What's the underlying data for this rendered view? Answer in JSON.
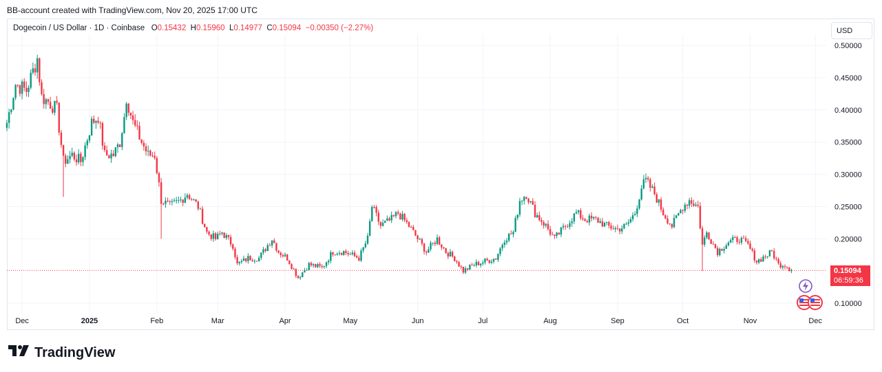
{
  "header": {
    "created_by": "BB-account created with TradingView.com, Nov 20, 2025 17:00 UTC"
  },
  "legend": {
    "symbol": "Dogecoin / US Dollar · 1D · Coinbase",
    "open_label": "O",
    "open": "0.15432",
    "high_label": "H",
    "high": "0.15960",
    "low_label": "L",
    "low": "0.14977",
    "close_label": "C",
    "close": "0.15094",
    "change": "−0.00350 (−2.27%)"
  },
  "currency_button": "USD",
  "last_price": {
    "price": "0.15094",
    "countdown": "06:59:36"
  },
  "brand": {
    "name": "TradingView"
  },
  "icons": [
    "flash-icon",
    "us-flag-icon"
  ],
  "colors": {
    "up": "#089981",
    "down": "#f23645",
    "grid": "#f0f3fa",
    "text": "#131722"
  },
  "chart_data": {
    "type": "candlestick",
    "x_axis_labels": [
      "Dec",
      "2025",
      "Feb",
      "Mar",
      "Apr",
      "May",
      "Jun",
      "Jul",
      "Aug",
      "Sep",
      "Oct",
      "Nov",
      "Dec"
    ],
    "y_axis_labels": [
      "0.50000",
      "0.45000",
      "0.40000",
      "0.35000",
      "0.30000",
      "0.25000",
      "0.20000",
      "0.10000"
    ],
    "ylim": [
      0.085,
      0.525
    ],
    "x_range": [
      "2024-11-24",
      "2025-12-06"
    ],
    "grid": true,
    "last_close": 0.15094,
    "close_path": [
      [
        "2024-11-24",
        0.38
      ],
      [
        "2024-11-28",
        0.44
      ],
      [
        "2024-12-03",
        0.43
      ],
      [
        "2024-12-06",
        0.46
      ],
      [
        "2024-12-08",
        0.48
      ],
      [
        "2024-12-10",
        0.42
      ],
      [
        "2024-12-14",
        0.41
      ],
      [
        "2024-12-17",
        0.4
      ],
      [
        "2024-12-20",
        0.32
      ],
      [
        "2024-12-24",
        0.33
      ],
      [
        "2024-12-28",
        0.32
      ],
      [
        "2025-01-02",
        0.38
      ],
      [
        "2025-01-05",
        0.39
      ],
      [
        "2025-01-08",
        0.33
      ],
      [
        "2025-01-12",
        0.33
      ],
      [
        "2025-01-15",
        0.35
      ],
      [
        "2025-01-17",
        0.39
      ],
      [
        "2025-01-18",
        0.42
      ],
      [
        "2025-01-21",
        0.38
      ],
      [
        "2025-01-25",
        0.35
      ],
      [
        "2025-01-28",
        0.33
      ],
      [
        "2025-01-31",
        0.33
      ],
      [
        "2025-02-03",
        0.26
      ],
      [
        "2025-02-07",
        0.25
      ],
      [
        "2025-02-12",
        0.26
      ],
      [
        "2025-02-15",
        0.27
      ],
      [
        "2025-02-20",
        0.25
      ],
      [
        "2025-02-24",
        0.21
      ],
      [
        "2025-02-28",
        0.2
      ],
      [
        "2025-03-03",
        0.21
      ],
      [
        "2025-03-08",
        0.19
      ],
      [
        "2025-03-10",
        0.16
      ],
      [
        "2025-03-15",
        0.17
      ],
      [
        "2025-03-20",
        0.17
      ],
      [
        "2025-03-26",
        0.2
      ],
      [
        "2025-03-29",
        0.18
      ],
      [
        "2025-04-02",
        0.17
      ],
      [
        "2025-04-07",
        0.14
      ],
      [
        "2025-04-12",
        0.16
      ],
      [
        "2025-04-18",
        0.155
      ],
      [
        "2025-04-23",
        0.18
      ],
      [
        "2025-04-28",
        0.18
      ],
      [
        "2025-05-05",
        0.17
      ],
      [
        "2025-05-09",
        0.2
      ],
      [
        "2025-05-11",
        0.25
      ],
      [
        "2025-05-15",
        0.22
      ],
      [
        "2025-05-20",
        0.23
      ],
      [
        "2025-05-23",
        0.24
      ],
      [
        "2025-05-28",
        0.22
      ],
      [
        "2025-06-01",
        0.2
      ],
      [
        "2025-06-05",
        0.18
      ],
      [
        "2025-06-10",
        0.2
      ],
      [
        "2025-06-14",
        0.18
      ],
      [
        "2025-06-18",
        0.17
      ],
      [
        "2025-06-22",
        0.15
      ],
      [
        "2025-06-27",
        0.16
      ],
      [
        "2025-07-02",
        0.165
      ],
      [
        "2025-07-07",
        0.17
      ],
      [
        "2025-07-11",
        0.2
      ],
      [
        "2025-07-15",
        0.21
      ],
      [
        "2025-07-18",
        0.26
      ],
      [
        "2025-07-21",
        0.27
      ],
      [
        "2025-07-25",
        0.24
      ],
      [
        "2025-07-30",
        0.22
      ],
      [
        "2025-08-03",
        0.2
      ],
      [
        "2025-08-08",
        0.22
      ],
      [
        "2025-08-13",
        0.24
      ],
      [
        "2025-08-17",
        0.23
      ],
      [
        "2025-08-22",
        0.23
      ],
      [
        "2025-08-27",
        0.22
      ],
      [
        "2025-09-01",
        0.215
      ],
      [
        "2025-09-05",
        0.22
      ],
      [
        "2025-09-09",
        0.24
      ],
      [
        "2025-09-12",
        0.28
      ],
      [
        "2025-09-14",
        0.29
      ],
      [
        "2025-09-18",
        0.27
      ],
      [
        "2025-09-22",
        0.24
      ],
      [
        "2025-09-26",
        0.22
      ],
      [
        "2025-10-01",
        0.25
      ],
      [
        "2025-10-04",
        0.26
      ],
      [
        "2025-10-08",
        0.25
      ],
      [
        "2025-10-10",
        0.19
      ],
      [
        "2025-10-12",
        0.21
      ],
      [
        "2025-10-17",
        0.18
      ],
      [
        "2025-10-22",
        0.195
      ],
      [
        "2025-10-27",
        0.2
      ],
      [
        "2025-10-31",
        0.19
      ],
      [
        "2025-11-04",
        0.165
      ],
      [
        "2025-11-09",
        0.175
      ],
      [
        "2025-11-11",
        0.18
      ],
      [
        "2025-11-14",
        0.16
      ],
      [
        "2025-11-17",
        0.16
      ],
      [
        "2025-11-20",
        0.15094
      ]
    ],
    "spike_lows": [
      [
        "2024-12-20",
        0.265
      ],
      [
        "2025-02-03",
        0.2
      ],
      [
        "2025-10-10",
        0.15
      ]
    ]
  }
}
